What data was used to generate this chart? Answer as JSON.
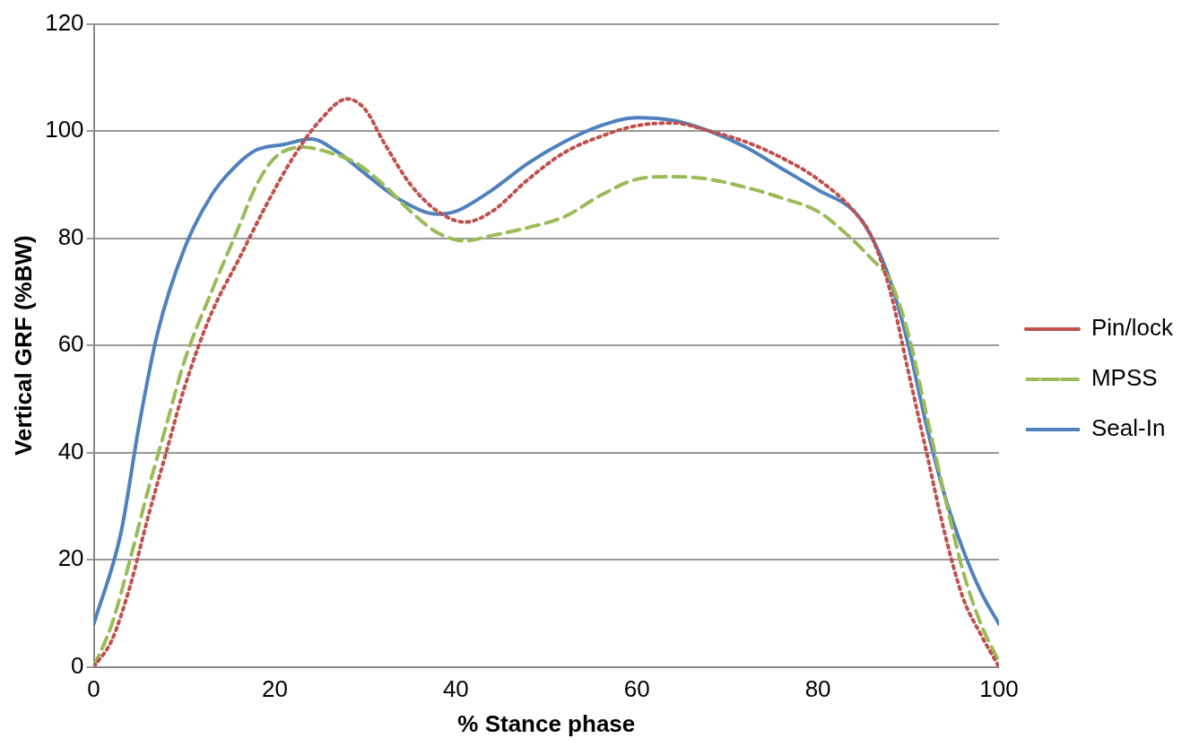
{
  "chart_data": {
    "type": "line",
    "xlabel": "% Stance phase",
    "ylabel": "Vertical GRF (%BW)",
    "xlim": [
      0,
      100
    ],
    "xticks": [
      0,
      20,
      40,
      60,
      80,
      100
    ],
    "ylim": [
      0,
      120
    ],
    "yticks": [
      0,
      20,
      40,
      60,
      80,
      100,
      120
    ],
    "grid": "y",
    "legend": "right",
    "marker": "none",
    "series": [
      {
        "name": "Pin/lock",
        "color": "#c0504d",
        "line_style": "dotted",
        "x": [
          0,
          2,
          4,
          6,
          8,
          10,
          13,
          16,
          19,
          22,
          25,
          28,
          30,
          32,
          35,
          38,
          41,
          44,
          48,
          52,
          56,
          60,
          64,
          68,
          72,
          76,
          80,
          84,
          86,
          88,
          90,
          92,
          94,
          96,
          98,
          100
        ],
        "values": [
          0,
          5,
          15,
          28,
          40,
          52,
          66,
          76,
          86,
          95,
          102,
          106,
          104,
          98,
          90,
          85,
          83,
          85,
          91,
          96,
          99,
          101,
          101.5,
          100,
          98,
          95,
          91,
          85,
          80,
          70,
          55,
          40,
          25,
          13,
          6,
          0
        ]
      },
      {
        "name": "MPSS",
        "color": "#9bbb59",
        "line_style": "dashed",
        "x": [
          0,
          2,
          4,
          6,
          8,
          10,
          13,
          16,
          18,
          20,
          23,
          26,
          29,
          32,
          35,
          38,
          41,
          44,
          48,
          52,
          56,
          60,
          64,
          68,
          72,
          76,
          80,
          83,
          86,
          88,
          90,
          92,
          94,
          96,
          98,
          100
        ],
        "values": [
          0,
          8,
          20,
          33,
          45,
          57,
          70,
          82,
          90,
          95,
          97,
          96,
          94,
          90,
          85,
          81,
          79.5,
          80.5,
          82,
          84,
          88,
          91,
          91.5,
          91,
          89.5,
          87.5,
          85,
          81,
          76,
          72,
          62,
          47,
          32,
          18,
          8,
          1
        ]
      },
      {
        "name": "Seal-In",
        "color": "#4f81bd",
        "line_style": "solid",
        "x": [
          0,
          3,
          5,
          7,
          10,
          13,
          16,
          18,
          21,
          24,
          27,
          30,
          34,
          38,
          40,
          44,
          48,
          52,
          56,
          60,
          64,
          68,
          72,
          76,
          80,
          84,
          86,
          88,
          90,
          92,
          94,
          96,
          98,
          100
        ],
        "values": [
          8,
          25,
          45,
          62,
          78,
          88,
          94,
          96.5,
          97.5,
          98.5,
          96,
          92,
          87,
          84.5,
          85,
          89,
          94,
          98,
          101,
          102.5,
          102,
          100,
          97,
          93,
          89,
          85,
          80,
          72,
          60,
          45,
          32,
          22,
          14,
          8
        ]
      }
    ]
  }
}
